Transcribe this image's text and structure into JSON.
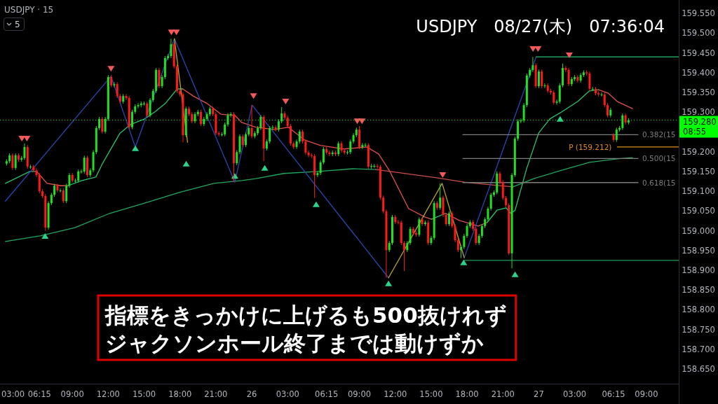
{
  "chart_data": {
    "type": "candlestick",
    "title": "USDJPY　08/27(木)　07:36:04",
    "subtitle": "USDJPY · 15",
    "xlim": [
      "--08-25T02:57",
      "--08-27T11:42"
    ],
    "ylim": [
      158.613,
      159.584
    ],
    "xticks": [
      {
        "value": "--08-25T03:00",
        "label": "03:00"
      },
      {
        "value": "--08-25T06:15",
        "label": "06:15"
      },
      {
        "value": "--08-25T09:00",
        "label": "09:00"
      },
      {
        "value": "--08-25T12:00",
        "label": "12:00"
      },
      {
        "value": "--08-25T15:00",
        "label": "15:00"
      },
      {
        "value": "--08-25T18:00",
        "label": "18:00"
      },
      {
        "value": "--08-25T21:00",
        "label": "21:00"
      },
      {
        "value": "--08-26T00:00",
        "label": "26"
      },
      {
        "value": "--08-26T03:00",
        "label": "03:00"
      },
      {
        "value": "--08-26T06:15",
        "label": "06:15"
      },
      {
        "value": "--08-26T09:00",
        "label": "09:00"
      },
      {
        "value": "--08-26T12:00",
        "label": "12:00"
      },
      {
        "value": "--08-26T15:00",
        "label": "15:00"
      },
      {
        "value": "--08-26T18:00",
        "label": "18:00"
      },
      {
        "value": "--08-26T21:00",
        "label": "21:00"
      },
      {
        "value": "--08-27T00:00",
        "label": "27"
      },
      {
        "value": "--08-27T03:00",
        "label": "03:00"
      },
      {
        "value": "--08-27T06:15",
        "label": "06:15"
      },
      {
        "value": "--08-27T09:00",
        "label": "09:00"
      }
    ],
    "yticks": [
      {
        "value": 158.65,
        "label": "158.650"
      },
      {
        "value": 158.7,
        "label": "158.700"
      },
      {
        "value": 158.75,
        "label": "158.750"
      },
      {
        "value": 158.8,
        "label": "158.800"
      },
      {
        "value": 158.85,
        "label": "158.850"
      },
      {
        "value": 158.9,
        "label": "158.900"
      },
      {
        "value": 158.95,
        "label": "158.950"
      },
      {
        "value": 159.0,
        "label": "159.000"
      },
      {
        "value": 159.05,
        "label": "159.050"
      },
      {
        "value": 159.1,
        "label": "159.100"
      },
      {
        "value": 159.15,
        "label": "159.150"
      },
      {
        "value": 159.2,
        "label": "159.200"
      },
      {
        "value": 159.3,
        "label": "159.300"
      },
      {
        "value": 159.35,
        "label": "159.350"
      },
      {
        "value": 159.4,
        "label": "159.400"
      },
      {
        "value": 159.45,
        "label": "159.450"
      },
      {
        "value": 159.5,
        "label": "159.500"
      },
      {
        "value": 159.55,
        "label": "159.550"
      }
    ],
    "x": [
      "--08-25T03:30",
      "--08-25T03:45",
      "--08-25T04:00",
      "--08-25T04:15",
      "--08-25T04:30",
      "--08-25T04:45",
      "--08-25T05:00",
      "--08-25T05:15",
      "--08-25T05:30",
      "--08-25T05:45",
      "--08-25T06:00",
      "--08-25T06:15",
      "--08-25T06:30",
      "--08-25T06:45",
      "--08-25T07:00",
      "--08-25T07:15",
      "--08-25T07:30",
      "--08-25T07:45",
      "--08-25T08:00",
      "--08-25T08:15",
      "--08-25T08:30",
      "--08-25T08:45",
      "--08-25T09:00",
      "--08-25T09:15",
      "--08-25T09:30",
      "--08-25T09:45",
      "--08-25T10:00",
      "--08-25T10:15",
      "--08-25T10:30",
      "--08-25T10:45",
      "--08-25T11:00",
      "--08-25T11:15",
      "--08-25T11:30",
      "--08-25T11:45",
      "--08-25T12:00",
      "--08-25T12:15",
      "--08-25T12:30",
      "--08-25T12:45",
      "--08-25T13:00",
      "--08-25T13:15",
      "--08-25T13:30",
      "--08-25T13:45",
      "--08-25T14:00",
      "--08-25T14:15",
      "--08-25T14:30",
      "--08-25T14:45",
      "--08-25T15:00",
      "--08-25T15:15",
      "--08-25T15:30",
      "--08-25T15:45",
      "--08-25T16:00",
      "--08-25T16:15",
      "--08-25T16:30",
      "--08-25T16:45",
      "--08-25T17:00",
      "--08-25T17:15",
      "--08-25T17:30",
      "--08-25T17:45",
      "--08-25T18:00",
      "--08-25T18:15",
      "--08-25T18:30",
      "--08-25T18:45",
      "--08-25T19:00",
      "--08-25T19:15",
      "--08-25T19:30",
      "--08-25T19:45",
      "--08-25T20:00",
      "--08-25T20:15",
      "--08-25T20:30",
      "--08-25T20:45",
      "--08-25T21:00",
      "--08-25T21:15",
      "--08-25T21:30",
      "--08-25T21:45",
      "--08-25T22:00",
      "--08-25T22:15",
      "--08-25T22:30",
      "--08-25T22:45",
      "--08-25T23:00",
      "--08-25T23:15",
      "--08-25T23:30",
      "--08-25T23:45",
      "--08-26T00:00",
      "--08-26T00:15",
      "--08-26T00:30",
      "--08-26T00:45",
      "--08-26T01:00",
      "--08-26T01:15",
      "--08-26T01:30",
      "--08-26T01:45",
      "--08-26T02:00",
      "--08-26T02:15",
      "--08-26T02:30",
      "--08-26T02:45",
      "--08-26T03:00",
      "--08-26T03:15",
      "--08-26T03:30",
      "--08-26T03:45",
      "--08-26T04:00",
      "--08-26T04:15",
      "--08-26T04:30",
      "--08-26T04:45",
      "--08-26T05:00",
      "--08-26T05:15",
      "--08-26T05:30",
      "--08-26T05:45",
      "--08-26T06:00",
      "--08-26T06:15",
      "--08-26T06:30",
      "--08-26T06:45",
      "--08-26T07:00",
      "--08-26T07:15",
      "--08-26T07:30",
      "--08-26T07:45",
      "--08-26T08:00",
      "--08-26T08:15",
      "--08-26T08:30",
      "--08-26T08:45",
      "--08-26T09:00",
      "--08-26T09:15",
      "--08-26T09:30",
      "--08-26T09:45",
      "--08-26T10:00",
      "--08-26T10:15",
      "--08-26T10:30",
      "--08-26T10:45",
      "--08-26T11:00",
      "--08-26T11:15",
      "--08-26T11:30",
      "--08-26T11:45",
      "--08-26T12:00",
      "--08-26T12:15",
      "--08-26T12:30",
      "--08-26T12:45",
      "--08-26T13:00",
      "--08-26T13:15",
      "--08-26T13:30",
      "--08-26T13:45",
      "--08-26T14:00",
      "--08-26T14:15",
      "--08-26T14:30",
      "--08-26T14:45",
      "--08-26T15:00",
      "--08-26T15:15",
      "--08-26T15:30",
      "--08-26T15:45",
      "--08-26T16:00",
      "--08-26T16:15",
      "--08-26T16:30",
      "--08-26T16:45",
      "--08-26T17:00",
      "--08-26T17:15",
      "--08-26T17:30",
      "--08-26T17:45",
      "--08-26T18:00",
      "--08-26T18:15",
      "--08-26T18:30",
      "--08-26T18:45",
      "--08-26T19:00",
      "--08-26T19:15",
      "--08-26T19:30",
      "--08-26T19:45",
      "--08-26T20:00",
      "--08-26T20:15",
      "--08-26T20:30",
      "--08-26T20:45",
      "--08-26T21:00",
      "--08-26T21:15",
      "--08-26T21:30",
      "--08-26T21:45",
      "--08-26T22:00",
      "--08-26T22:15",
      "--08-26T22:30",
      "--08-26T22:45",
      "--08-26T23:00",
      "--08-26T23:15",
      "--08-26T23:30",
      "--08-26T23:45",
      "--08-27T00:00",
      "--08-27T00:15",
      "--08-27T00:30",
      "--08-27T00:45",
      "--08-27T01:00",
      "--08-27T01:15",
      "--08-27T01:30",
      "--08-27T01:45",
      "--08-27T02:00",
      "--08-27T02:15",
      "--08-27T02:30",
      "--08-27T02:45",
      "--08-27T03:00",
      "--08-27T03:15",
      "--08-27T03:30",
      "--08-27T03:45",
      "--08-27T04:00",
      "--08-27T04:15",
      "--08-27T04:30",
      "--08-27T04:45",
      "--08-27T05:00",
      "--08-27T05:15",
      "--08-27T05:30",
      "--08-27T05:45",
      "--08-27T06:00",
      "--08-27T06:15",
      "--08-27T06:30",
      "--08-27T06:45",
      "--08-27T07:00",
      "--08-27T07:15",
      "--08-27T07:30"
    ],
    "colors": [
      "#21e021",
      "#21e021",
      "#ff1a1a",
      "#21e021",
      "#ff1a1a",
      "#21e021",
      "#21e021",
      "#ff1a1a",
      "#21e021",
      "#ff1a1a",
      "#ff1a1a",
      "#ff1a1a",
      "#ff1a1a",
      "#ff1a1a",
      "#21e021",
      "#21e021",
      "#21e021",
      "#ff1a1a",
      "#21e021",
      "#ff1a1a",
      "#21e021",
      "#21e021",
      "#ff1a1a",
      "#21e021",
      "#21e021",
      "#21e021",
      "#21e021",
      "#ff1a1a",
      "#21e021",
      "#21e021",
      "#21e021",
      "#21e021",
      "#ff1a1a",
      "#21e021",
      "#21e021",
      "#ff1a1a",
      "#21e021",
      "#ff1a1a",
      "#ff1a1a",
      "#21e021",
      "#ff1a1a",
      "#ff1a1a",
      "#21e021",
      "#21e021",
      "#21e021",
      "#21e021",
      "#21e021",
      "#ff1a1a",
      "#21e021",
      "#21e021",
      "#21e021",
      "#ff1a1a",
      "#21e021",
      "#21e021",
      "#21e021",
      "#21e021",
      "#ff1a1a",
      "#ff1a1a",
      "#ff1a1a",
      "#ff1a1a",
      "#21e021",
      "#ff1a1a",
      "#ff1a1a",
      "#21e021",
      "#21e021",
      "#ff1a1a",
      "#21e021",
      "#21e021",
      "#21e021",
      "#ff1a1a",
      "#ff1a1a",
      "#ff1a1a",
      "#21e021",
      "#21e021",
      "#21e021",
      "#21e021",
      "#ff1a1a",
      "#21e021",
      "#21e021",
      "#ff1a1a",
      "#21e021",
      "#21e021",
      "#ff1a1a",
      "#21e021",
      "#21e021",
      "#21e021",
      "#ff1a1a",
      "#21e021",
      "#21e021",
      "#21e021",
      "#ff1a1a",
      "#21e021",
      "#21e021",
      "#ff1a1a",
      "#ff1a1a",
      "#ff1a1a",
      "#ff1a1a",
      "#21e021",
      "#21e021",
      "#ff1a1a",
      "#ff1a1a",
      "#ff1a1a",
      "#ff1a1a",
      "#ff1a1a",
      "#21e021",
      "#21e021",
      "#21e021",
      "#ff1a1a",
      "#ff1a1a",
      "#21e021",
      "#ff1a1a",
      "#21e021",
      "#ff1a1a",
      "#ff1a1a",
      "#21e021",
      "#21e021",
      "#21e021",
      "#21e021",
      "#ff1a1a",
      "#21e021",
      "#21e021",
      "#ff1a1a",
      "#21e021",
      "#21e021",
      "#ff1a1a",
      "#ff1a1a",
      "#ff1a1a",
      "#ff1a1a",
      "#21e021",
      "#21e021",
      "#ff1a1a",
      "#ff1a1a",
      "#ff1a1a",
      "#ff1a1a",
      "#21e021",
      "#21e021",
      "#ff1a1a",
      "#ff1a1a",
      "#21e021",
      "#ff1a1a",
      "#21e021",
      "#ff1a1a",
      "#21e021",
      "#21e021",
      "#ff1a1a",
      "#21e021",
      "#ff1a1a",
      "#ff1a1a",
      "#21e021",
      "#ff1a1a",
      "#ff1a1a",
      "#ff1a1a",
      "#21e021",
      "#21e021",
      "#21e021",
      "#21e021",
      "#ff1a1a",
      "#ff1a1a",
      "#21e021",
      "#21e021",
      "#21e021",
      "#21e021",
      "#21e021",
      "#21e021",
      "#21e021",
      "#ff1a1a",
      "#ff1a1a",
      "#ff1a1a",
      "#ff1a1a",
      "#21e021",
      "#21e021",
      "#21e021",
      "#21e021",
      "#21e021",
      "#21e021",
      "#21e021",
      "#21e021",
      "#ff1a1a",
      "#21e021",
      "#ff1a1a",
      "#21e021",
      "#ff1a1a",
      "#ff1a1a",
      "#ff1a1a",
      "#21e021",
      "#21e021",
      "#21e021",
      "#ff1a1a",
      "#ff1a1a",
      "#21e021",
      "#21e021",
      "#ff1a1a",
      "#21e021",
      "#21e021",
      "#ff1a1a",
      "#ff1a1a",
      "#21e021",
      "#ff1a1a",
      "#ff1a1a",
      "#21e021",
      "#ff1a1a",
      "#ff1a1a",
      "#21e021",
      "#ff1a1a",
      "#21e021",
      "#21e021",
      "#21e021",
      "#ff1a1a",
      "#21e021"
    ],
    "ohlc": [
      [
        159.17,
        159.181,
        159.165,
        159.176
      ],
      [
        159.176,
        159.196,
        159.171,
        159.191
      ],
      [
        159.191,
        159.196,
        159.154,
        159.159
      ],
      [
        159.159,
        159.196,
        159.154,
        159.191
      ],
      [
        159.191,
        159.196,
        159.175,
        159.18
      ],
      [
        159.18,
        159.189,
        159.175,
        159.184
      ],
      [
        159.184,
        159.221,
        159.179,
        159.212
      ],
      [
        159.212,
        159.217,
        159.157,
        159.162
      ],
      [
        159.162,
        159.167,
        159.157,
        159.162
      ],
      [
        159.162,
        159.167,
        159.148,
        159.153
      ],
      [
        159.153,
        159.158,
        159.136,
        159.141
      ],
      [
        159.141,
        159.146,
        159.095,
        159.1
      ],
      [
        159.1,
        159.105,
        159.083,
        159.088
      ],
      [
        159.088,
        159.093,
        159.0,
        159.008
      ],
      [
        159.008,
        159.075,
        159.003,
        159.07
      ],
      [
        159.07,
        159.096,
        159.065,
        159.091
      ],
      [
        159.091,
        159.119,
        159.086,
        159.114
      ],
      [
        159.114,
        159.119,
        159.097,
        159.102
      ],
      [
        159.102,
        159.107,
        159.097,
        159.102
      ],
      [
        159.102,
        159.107,
        159.07,
        159.075
      ],
      [
        159.075,
        159.119,
        159.07,
        159.114
      ],
      [
        159.114,
        159.146,
        159.109,
        159.141
      ],
      [
        159.141,
        159.146,
        159.122,
        159.127
      ],
      [
        159.127,
        159.132,
        159.122,
        159.127
      ],
      [
        159.127,
        159.155,
        159.122,
        159.15
      ],
      [
        159.15,
        159.155,
        159.145,
        159.15
      ],
      [
        159.15,
        159.19,
        159.145,
        159.185
      ],
      [
        159.185,
        159.19,
        159.136,
        159.141
      ],
      [
        159.141,
        159.158,
        159.136,
        159.153
      ],
      [
        159.153,
        159.204,
        159.148,
        159.199
      ],
      [
        159.199,
        159.265,
        159.194,
        159.26
      ],
      [
        159.26,
        159.288,
        159.255,
        159.283
      ],
      [
        159.283,
        159.288,
        159.246,
        159.251
      ],
      [
        159.251,
        159.288,
        159.246,
        159.283
      ],
      [
        159.283,
        159.394,
        159.278,
        159.389
      ],
      [
        159.389,
        159.394,
        159.363,
        159.368
      ],
      [
        159.368,
        159.376,
        159.363,
        159.371
      ],
      [
        159.371,
        159.376,
        159.336,
        159.341
      ],
      [
        159.341,
        159.346,
        159.322,
        159.327
      ],
      [
        159.327,
        159.346,
        159.322,
        159.341
      ],
      [
        159.341,
        159.346,
        159.331,
        159.336
      ],
      [
        159.336,
        159.341,
        159.257,
        159.262
      ],
      [
        159.262,
        159.306,
        159.257,
        159.301
      ],
      [
        159.301,
        159.32,
        159.296,
        159.315
      ],
      [
        159.315,
        159.323,
        159.31,
        159.318
      ],
      [
        159.318,
        159.327,
        159.313,
        159.322
      ],
      [
        159.322,
        159.327,
        159.317,
        159.322
      ],
      [
        159.322,
        159.327,
        159.287,
        159.292
      ],
      [
        159.292,
        159.336,
        159.287,
        159.331
      ],
      [
        159.331,
        159.359,
        159.326,
        159.354
      ],
      [
        159.354,
        159.412,
        159.349,
        159.407
      ],
      [
        159.407,
        159.412,
        159.361,
        159.366
      ],
      [
        159.366,
        159.394,
        159.361,
        159.389
      ],
      [
        159.389,
        159.442,
        159.384,
        159.437
      ],
      [
        159.437,
        159.447,
        159.432,
        159.442
      ],
      [
        159.442,
        159.486,
        159.437,
        159.472
      ],
      [
        159.472,
        159.477,
        159.411,
        159.416
      ],
      [
        159.416,
        159.421,
        159.349,
        159.354
      ],
      [
        159.354,
        159.359,
        159.34,
        159.345
      ],
      [
        159.345,
        159.35,
        159.224,
        159.242
      ],
      [
        159.242,
        159.314,
        159.237,
        159.309
      ],
      [
        159.309,
        159.314,
        159.29,
        159.295
      ],
      [
        159.295,
        159.3,
        159.272,
        159.277
      ],
      [
        159.277,
        159.3,
        159.272,
        159.295
      ],
      [
        159.295,
        159.306,
        159.29,
        159.301
      ],
      [
        159.301,
        159.306,
        159.265,
        159.27
      ],
      [
        159.27,
        159.288,
        159.265,
        159.283
      ],
      [
        159.283,
        159.3,
        159.278,
        159.295
      ],
      [
        159.295,
        159.314,
        159.29,
        159.309
      ],
      [
        159.309,
        159.314,
        159.29,
        159.295
      ],
      [
        159.295,
        159.3,
        159.242,
        159.247
      ],
      [
        159.247,
        159.252,
        159.239,
        159.244
      ],
      [
        159.244,
        159.249,
        159.239,
        159.244
      ],
      [
        159.244,
        159.274,
        159.239,
        159.269
      ],
      [
        159.269,
        159.297,
        159.264,
        159.292
      ],
      [
        159.292,
        159.3,
        159.287,
        159.295
      ],
      [
        159.295,
        159.3,
        159.123,
        159.171
      ],
      [
        159.171,
        159.204,
        159.166,
        159.199
      ],
      [
        159.199,
        159.244,
        159.194,
        159.239
      ],
      [
        159.239,
        159.244,
        159.212,
        159.217
      ],
      [
        159.217,
        159.249,
        159.212,
        159.244
      ],
      [
        159.244,
        159.265,
        159.239,
        159.26
      ],
      [
        159.26,
        159.318,
        159.234,
        159.239
      ],
      [
        159.239,
        159.252,
        159.234,
        159.247
      ],
      [
        159.247,
        159.265,
        159.242,
        159.26
      ],
      [
        159.26,
        159.293,
        159.255,
        159.288
      ],
      [
        159.288,
        159.293,
        159.176,
        159.208
      ],
      [
        159.208,
        159.231,
        159.203,
        159.226
      ],
      [
        159.226,
        159.265,
        159.221,
        159.26
      ],
      [
        159.26,
        159.267,
        159.255,
        159.262
      ],
      [
        159.262,
        159.267,
        159.251,
        159.256
      ],
      [
        159.256,
        159.282,
        159.251,
        159.277
      ],
      [
        159.277,
        159.313,
        159.272,
        159.297
      ],
      [
        159.297,
        159.302,
        159.281,
        159.286
      ],
      [
        159.286,
        159.291,
        159.26,
        159.265
      ],
      [
        159.265,
        159.27,
        159.216,
        159.221
      ],
      [
        159.221,
        159.226,
        159.207,
        159.212
      ],
      [
        159.212,
        159.231,
        159.207,
        159.226
      ],
      [
        159.226,
        159.256,
        159.221,
        159.251
      ],
      [
        159.251,
        159.256,
        159.221,
        159.226
      ],
      [
        159.226,
        159.231,
        159.193,
        159.198
      ],
      [
        159.198,
        159.203,
        159.186,
        159.191
      ],
      [
        159.191,
        159.196,
        159.184,
        159.189
      ],
      [
        159.189,
        159.194,
        159.083,
        159.141
      ],
      [
        159.141,
        159.151,
        159.136,
        159.146
      ],
      [
        159.146,
        159.178,
        159.141,
        159.173
      ],
      [
        159.173,
        159.212,
        159.168,
        159.207
      ],
      [
        159.207,
        159.212,
        159.193,
        159.198
      ],
      [
        159.198,
        159.203,
        159.189,
        159.194
      ],
      [
        159.194,
        159.203,
        159.189,
        159.198
      ],
      [
        159.198,
        159.203,
        159.189,
        159.194
      ],
      [
        159.194,
        159.226,
        159.189,
        159.221
      ],
      [
        159.221,
        159.226,
        159.198,
        159.203
      ],
      [
        159.203,
        159.208,
        159.193,
        159.198
      ],
      [
        159.198,
        159.204,
        159.193,
        159.199
      ],
      [
        159.199,
        159.231,
        159.194,
        159.226
      ],
      [
        159.226,
        159.247,
        159.221,
        159.242
      ],
      [
        159.242,
        159.261,
        159.237,
        159.256
      ],
      [
        159.256,
        159.265,
        159.207,
        159.212
      ],
      [
        159.212,
        159.222,
        159.207,
        159.217
      ],
      [
        159.217,
        159.222,
        159.212,
        159.217
      ],
      [
        159.217,
        159.222,
        159.157,
        159.162
      ],
      [
        159.162,
        159.169,
        159.157,
        159.164
      ],
      [
        159.164,
        159.169,
        159.159,
        159.164
      ],
      [
        159.164,
        159.169,
        159.157,
        159.162
      ],
      [
        159.162,
        159.167,
        159.079,
        159.084
      ],
      [
        159.084,
        159.089,
        159.044,
        159.049
      ],
      [
        159.049,
        159.054,
        158.881,
        158.951
      ],
      [
        158.951,
        158.974,
        158.946,
        158.969
      ],
      [
        158.969,
        159.04,
        158.964,
        159.035
      ],
      [
        159.035,
        159.04,
        159.017,
        159.022
      ],
      [
        159.022,
        159.027,
        159.016,
        159.021
      ],
      [
        159.021,
        159.026,
        158.964,
        158.969
      ],
      [
        158.969,
        158.974,
        158.898,
        158.951
      ],
      [
        158.951,
        158.974,
        158.946,
        158.969
      ],
      [
        158.969,
        159.01,
        158.964,
        159.005
      ],
      [
        159.005,
        159.01,
        158.989,
        158.994
      ],
      [
        158.994,
        158.999,
        158.985,
        158.99
      ],
      [
        158.99,
        159.034,
        158.985,
        159.029
      ],
      [
        159.029,
        159.034,
        159.012,
        159.017
      ],
      [
        159.017,
        159.026,
        159.012,
        159.021
      ],
      [
        159.021,
        159.026,
        158.964,
        158.969
      ],
      [
        158.969,
        158.987,
        158.964,
        158.982
      ],
      [
        158.982,
        159.075,
        158.977,
        159.07
      ],
      [
        159.07,
        159.075,
        159.053,
        159.058
      ],
      [
        159.058,
        159.12,
        159.053,
        159.084
      ],
      [
        159.084,
        159.089,
        159.035,
        159.04
      ],
      [
        159.04,
        159.045,
        159.012,
        159.017
      ],
      [
        159.017,
        159.049,
        159.012,
        159.044
      ],
      [
        159.044,
        159.049,
        159.007,
        159.012
      ],
      [
        159.012,
        159.017,
        158.971,
        158.976
      ],
      [
        158.976,
        158.981,
        158.946,
        158.951
      ],
      [
        158.951,
        158.964,
        158.931,
        158.959
      ],
      [
        158.959,
        158.992,
        158.954,
        158.987
      ],
      [
        158.987,
        159.017,
        158.982,
        159.012
      ],
      [
        159.012,
        159.027,
        159.007,
        159.022
      ],
      [
        159.022,
        159.027,
        159.0,
        159.005
      ],
      [
        159.005,
        159.01,
        158.964,
        158.969
      ],
      [
        158.969,
        158.992,
        158.964,
        158.987
      ],
      [
        158.987,
        159.017,
        158.982,
        159.012
      ],
      [
        159.012,
        159.034,
        159.007,
        159.029
      ],
      [
        159.029,
        159.061,
        159.024,
        159.056
      ],
      [
        159.056,
        159.096,
        159.051,
        159.091
      ],
      [
        159.091,
        159.102,
        159.086,
        159.097
      ],
      [
        159.097,
        159.15,
        159.092,
        159.145
      ],
      [
        159.145,
        159.15,
        159.118,
        159.123
      ],
      [
        159.123,
        159.128,
        159.078,
        159.083
      ],
      [
        159.083,
        159.088,
        159.06,
        159.065
      ],
      [
        159.065,
        159.07,
        158.938,
        158.943
      ],
      [
        158.943,
        159.146,
        158.905,
        159.141
      ],
      [
        159.141,
        159.238,
        159.136,
        159.233
      ],
      [
        159.233,
        159.282,
        159.228,
        159.277
      ],
      [
        159.277,
        159.284,
        159.272,
        159.279
      ],
      [
        159.279,
        159.323,
        159.274,
        159.318
      ],
      [
        159.318,
        159.398,
        159.313,
        159.393
      ],
      [
        159.393,
        159.412,
        159.388,
        159.407
      ],
      [
        159.407,
        159.44,
        159.402,
        159.419
      ],
      [
        159.419,
        159.424,
        159.361,
        159.366
      ],
      [
        159.366,
        159.408,
        159.361,
        159.403
      ],
      [
        159.403,
        159.408,
        159.361,
        159.366
      ],
      [
        159.366,
        159.373,
        159.361,
        159.368
      ],
      [
        159.368,
        159.373,
        159.349,
        159.354
      ],
      [
        159.354,
        159.359,
        159.345,
        159.35
      ],
      [
        159.35,
        159.355,
        159.319,
        159.324
      ],
      [
        159.324,
        159.332,
        159.319,
        159.327
      ],
      [
        159.327,
        159.373,
        159.322,
        159.368
      ],
      [
        159.368,
        159.423,
        159.363,
        159.412
      ],
      [
        159.412,
        159.417,
        159.402,
        159.407
      ],
      [
        159.407,
        159.412,
        159.366,
        159.371
      ],
      [
        159.371,
        159.389,
        159.366,
        159.384
      ],
      [
        159.384,
        159.394,
        159.379,
        159.389
      ],
      [
        159.389,
        159.394,
        159.375,
        159.38
      ],
      [
        159.38,
        159.399,
        159.375,
        159.394
      ],
      [
        159.394,
        159.406,
        159.389,
        159.401
      ],
      [
        159.401,
        159.406,
        159.393,
        159.398
      ],
      [
        159.398,
        159.403,
        159.354,
        159.359
      ],
      [
        159.359,
        159.364,
        159.354,
        159.359
      ],
      [
        159.359,
        159.364,
        159.343,
        159.348
      ],
      [
        159.348,
        159.353,
        159.34,
        159.345
      ],
      [
        159.345,
        159.35,
        159.34,
        159.345
      ],
      [
        159.345,
        159.35,
        159.313,
        159.318
      ],
      [
        159.318,
        159.323,
        159.287,
        159.292
      ],
      [
        159.292,
        159.311,
        159.287,
        159.306
      ],
      [
        159.242,
        159.247,
        159.225,
        159.23
      ],
      [
        159.23,
        159.261,
        159.225,
        159.256
      ],
      [
        159.256,
        159.265,
        159.251,
        159.26
      ],
      [
        159.26,
        159.297,
        159.255,
        159.292
      ],
      [
        159.292,
        159.297,
        159.269,
        159.274
      ],
      [
        159.274,
        159.285,
        159.269,
        159.28
      ]
    ],
    "series": [
      {
        "type": "line",
        "color": "#27c36b",
        "x": [
          "--08-25T03:24",
          "--08-25T05:26",
          "--08-25T06:01"
        ],
        "values": [
          159.12,
          159.15,
          159.15
        ]
      },
      {
        "type": "line",
        "color": "#27c36b",
        "x": [
          "--08-25T08:38",
          "--08-25T09:48",
          "--08-25T10:58",
          "--08-25T11:32",
          "--08-25T12:59",
          "--08-25T13:52",
          "--08-25T15:02",
          "--08-25T15:54",
          "--08-25T16:46",
          "--08-25T17:46",
          "--08-25T18:14"
        ],
        "values": [
          159.114,
          159.127,
          159.136,
          159.171,
          159.247,
          159.269,
          159.283,
          159.301,
          159.322,
          159.359,
          159.359
        ]
      },
      {
        "type": "line",
        "color": "#27c36b",
        "x": [
          "--08-26T15:02",
          "--08-26T16:12"
        ],
        "values": [
          159.029,
          159.044
        ]
      },
      {
        "type": "line",
        "color": "#27c36b",
        "x": [
          "--08-26T19:41",
          "--08-26T20:30",
          "--08-26T21:16",
          "--08-26T21:40",
          "--08-26T22:01",
          "--08-26T23:00",
          "--08-26T23:59",
          "--08-27T00:55",
          "--08-27T01:55",
          "--08-27T03:15",
          "--08-27T04:14",
          "--08-27T04:59"
        ],
        "values": [
          159.021,
          159.052,
          159.058,
          159.044,
          159.052,
          159.159,
          159.247,
          159.283,
          159.301,
          159.327,
          159.354,
          159.357
        ]
      },
      {
        "type": "line",
        "color": "#e0524a",
        "x": [
          "--08-25T06:01",
          "--08-25T06:53",
          "--08-25T08:03",
          "--08-25T08:38"
        ],
        "values": [
          159.15,
          159.12,
          159.114,
          159.114
        ]
      },
      {
        "type": "line",
        "color": "#e0524a",
        "x": [
          "--08-25T18:14",
          "--08-25T19:06",
          "--08-25T20:16",
          "--08-25T21:25",
          "--08-25T22:35",
          "--08-25T23:10",
          "--08-26T00:20",
          "--08-26T01:54",
          "--08-26T03:04",
          "--08-26T04:24",
          "--08-26T05:44",
          "--08-26T07:43",
          "--08-26T09:38",
          "--08-26T10:37",
          "--08-26T11:33",
          "--08-26T13:07",
          "--08-26T14:28",
          "--08-26T15:02"
        ],
        "values": [
          159.359,
          159.341,
          159.322,
          159.295,
          159.292,
          159.274,
          159.262,
          159.256,
          159.262,
          159.23,
          159.216,
          159.207,
          159.212,
          159.194,
          159.15,
          159.056,
          159.035,
          159.029
        ]
      },
      {
        "type": "line",
        "color": "#e0524a",
        "x": [
          "--08-26T16:12",
          "--08-26T17:22",
          "--08-26T18:56",
          "--08-26T19:41"
        ],
        "values": [
          159.044,
          159.026,
          159.012,
          159.021
        ]
      },
      {
        "type": "line",
        "color": "#e0524a",
        "x": [
          "--08-27T04:59",
          "--08-27T05:49",
          "--08-27T06:34",
          "--08-27T07:50"
        ],
        "values": [
          159.357,
          159.348,
          159.327,
          159.309
        ]
      },
      {
        "type": "line",
        "color": "#1fa85e",
        "x": [
          "--08-25T03:24",
          "--08-25T06:18",
          "--08-25T09:13",
          "--08-25T12:07",
          "--08-25T15:02",
          "--08-25T17:56",
          "--08-25T20:50",
          "--08-25T23:10",
          "--08-26T00:20",
          "--08-26T02:40",
          "--08-26T05:34",
          "--08-26T08:28",
          "--08-26T10:22"
        ],
        "values": [
          158.973,
          158.987,
          159.008,
          159.044,
          159.07,
          159.097,
          159.12,
          159.127,
          159.132,
          159.145,
          159.15,
          159.157,
          159.155
        ]
      },
      {
        "type": "line",
        "color": "#1fa85e",
        "x": [
          "--08-26T21:50",
          "--08-26T23:35",
          "--08-27T01:55",
          "--08-27T04:14",
          "--08-27T06:34",
          "--08-27T07:50"
        ],
        "values": [
          159.111,
          159.132,
          159.153,
          159.173,
          159.182,
          159.185
        ]
      },
      {
        "type": "line",
        "color": "#c9504a",
        "x": [
          "--08-26T10:22",
          "--08-26T12:32",
          "--08-26T15:27",
          "--08-26T17:46",
          "--08-26T20:06",
          "--08-26T21:50"
        ],
        "values": [
          159.155,
          159.146,
          159.134,
          159.123,
          159.116,
          159.111
        ]
      },
      {
        "type": "line",
        "color": "#2a46b0",
        "x": [
          "--08-25T03:24",
          "--08-25T12:14",
          "--08-25T14:16",
          "--08-25T17:32",
          "--08-25T22:35",
          "--08-26T00:02",
          "--08-26T11:26"
        ],
        "values": [
          159.075,
          159.391,
          159.212,
          159.486,
          159.123,
          159.318,
          158.881
        ]
      },
      {
        "type": "line",
        "color": "#2a46b0",
        "x": [
          "--08-26T17:46",
          "--08-26T23:46"
        ],
        "values": [
          158.932,
          159.439
        ]
      },
      {
        "type": "line",
        "color": "#b8a42a",
        "x": [
          "--08-25T17:32",
          "--08-25T18:38"
        ],
        "values": [
          159.486,
          159.224
        ]
      },
      {
        "type": "line",
        "color": "#b8a42a",
        "x": [
          "--08-26T11:26",
          "--08-26T15:55",
          "--08-26T17:46"
        ],
        "values": [
          158.881,
          159.12,
          158.932
        ]
      },
      {
        "type": "line",
        "name": "0.382(15",
        "color": "#7d7d7d",
        "x": [
          "--08-26T17:39",
          "--08-27T08:18"
        ],
        "values": [
          159.243,
          159.243
        ]
      },
      {
        "type": "line",
        "name": "0.500(15",
        "color": "#7d7d7d",
        "x": [
          "--08-26T17:39",
          "--08-27T08:18"
        ],
        "values": [
          159.183,
          159.183
        ]
      },
      {
        "type": "line",
        "name": "0.618(15",
        "color": "#7d7d7d",
        "x": [
          "--08-26T17:39",
          "--08-27T08:18"
        ],
        "values": [
          159.122,
          159.122
        ]
      },
      {
        "type": "line",
        "color": "#1f9e5a",
        "x": [
          "--08-26T23:46",
          "--08-27T11:42"
        ],
        "values": [
          159.44,
          159.44
        ]
      },
      {
        "type": "line",
        "color": "#1f9e5a",
        "x": [
          "--08-26T17:43",
          "--08-27T11:42"
        ],
        "values": [
          158.925,
          158.925
        ]
      },
      {
        "type": "line",
        "name": "P (159.212)",
        "color": "#e08a1e",
        "x": [
          "--08-27T06:34",
          "--08-27T11:42"
        ],
        "values": [
          159.212,
          159.212
        ]
      },
      {
        "type": "scatter",
        "marker": "triangle",
        "color": "#f05a5a",
        "x": [
          "--08-25T04:47",
          "--08-25T05:12",
          "--08-25T12:14",
          "--08-25T17:17",
          "--08-25T17:42",
          "--08-26T00:09",
          "--08-26T02:50",
          "--08-26T08:49",
          "--08-26T09:13",
          "--08-26T15:58",
          "--08-26T23:31",
          "--08-26T23:56",
          "--08-27T02:33"
        ],
        "values": [
          159.233,
          159.233,
          159.41,
          159.502,
          159.502,
          159.341,
          159.327,
          159.277,
          159.277,
          159.141,
          159.46,
          159.46,
          159.444
        ]
      },
      {
        "type": "scatter",
        "marker": "triangle",
        "color": "#2bd48a",
        "x": [
          "--08-25T06:43",
          "--08-25T14:16",
          "--08-25T18:31",
          "--08-25T22:35",
          "--08-26T01:05",
          "--08-26T05:23",
          "--08-26T11:26",
          "--08-26T17:43",
          "--08-26T22:01",
          "--08-27T01:47"
        ],
        "values": [
          158.987,
          159.209,
          159.17,
          159.139,
          159.159,
          159.067,
          158.867,
          158.92,
          158.89,
          159.283
        ]
      }
    ],
    "ref_lines": [
      {
        "axis": "y",
        "value": 159.28,
        "label": "159.280\n08:55",
        "color": "#00ff00",
        "line_style": "dotted"
      }
    ],
    "annotations": [
      "指標をきっかけに上げるも500抜けれずジャクソンホール終了までは動けずか",
      "5"
    ]
  }
}
